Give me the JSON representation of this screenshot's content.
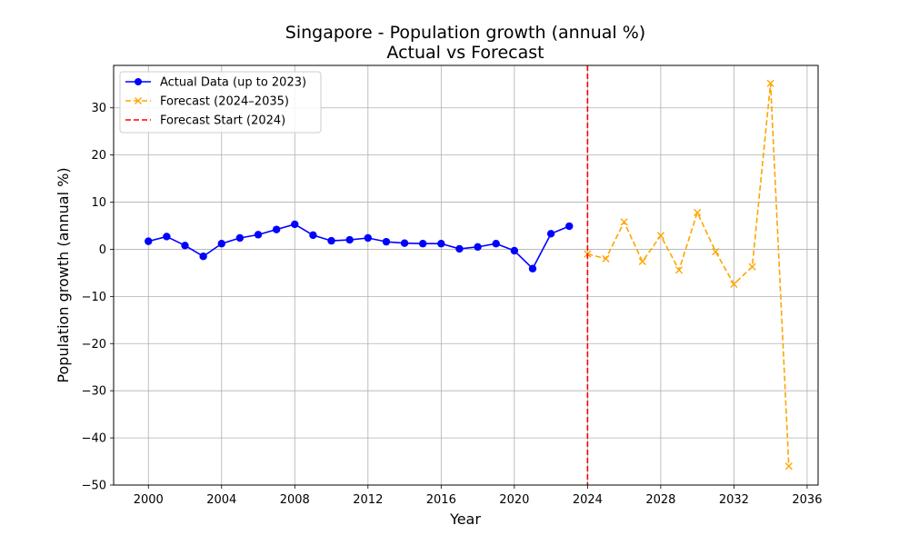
{
  "chart_data": {
    "type": "line",
    "title": "Singapore - Population growth (annual %)",
    "subtitle": "Actual vs Forecast",
    "xlabel": "Year",
    "ylabel": "Population growth (annual %)",
    "xlim": [
      1998.1,
      2036.6
    ],
    "ylim": [
      -50,
      39
    ],
    "xticks": [
      2000,
      2004,
      2008,
      2012,
      2016,
      2020,
      2024,
      2028,
      2032,
      2036
    ],
    "yticks": [
      -50,
      -40,
      -30,
      -20,
      -10,
      0,
      10,
      20,
      30
    ],
    "grid": true,
    "legend_position": "top-left",
    "series": [
      {
        "name": "Actual Data (up to 2023)",
        "color": "#0000ff",
        "style": "solid",
        "marker": "circle",
        "x": [
          2000,
          2001,
          2002,
          2003,
          2004,
          2005,
          2006,
          2007,
          2008,
          2009,
          2010,
          2011,
          2012,
          2013,
          2014,
          2015,
          2016,
          2017,
          2018,
          2019,
          2020,
          2021,
          2022,
          2023
        ],
        "y": [
          1.7,
          2.7,
          0.8,
          -1.5,
          1.2,
          2.4,
          3.1,
          4.2,
          5.3,
          3.0,
          1.8,
          2.0,
          2.4,
          1.6,
          1.3,
          1.2,
          1.2,
          0.1,
          0.5,
          1.2,
          -0.3,
          -4.1,
          3.3,
          4.9
        ]
      },
      {
        "name": "Forecast (2024–2035)",
        "color": "#ffa500",
        "style": "dashed",
        "marker": "x",
        "x": [
          2024,
          2025,
          2026,
          2027,
          2028,
          2029,
          2030,
          2031,
          2032,
          2033,
          2034,
          2035
        ],
        "y": [
          -1.0,
          -2.0,
          5.8,
          -2.6,
          2.9,
          -4.4,
          7.8,
          -0.5,
          -7.4,
          -3.7,
          35.2,
          -46.0
        ]
      }
    ],
    "vline": {
      "name": "Forecast Start (2024)",
      "x": 2024,
      "color": "#ff0000",
      "style": "dashed"
    }
  }
}
